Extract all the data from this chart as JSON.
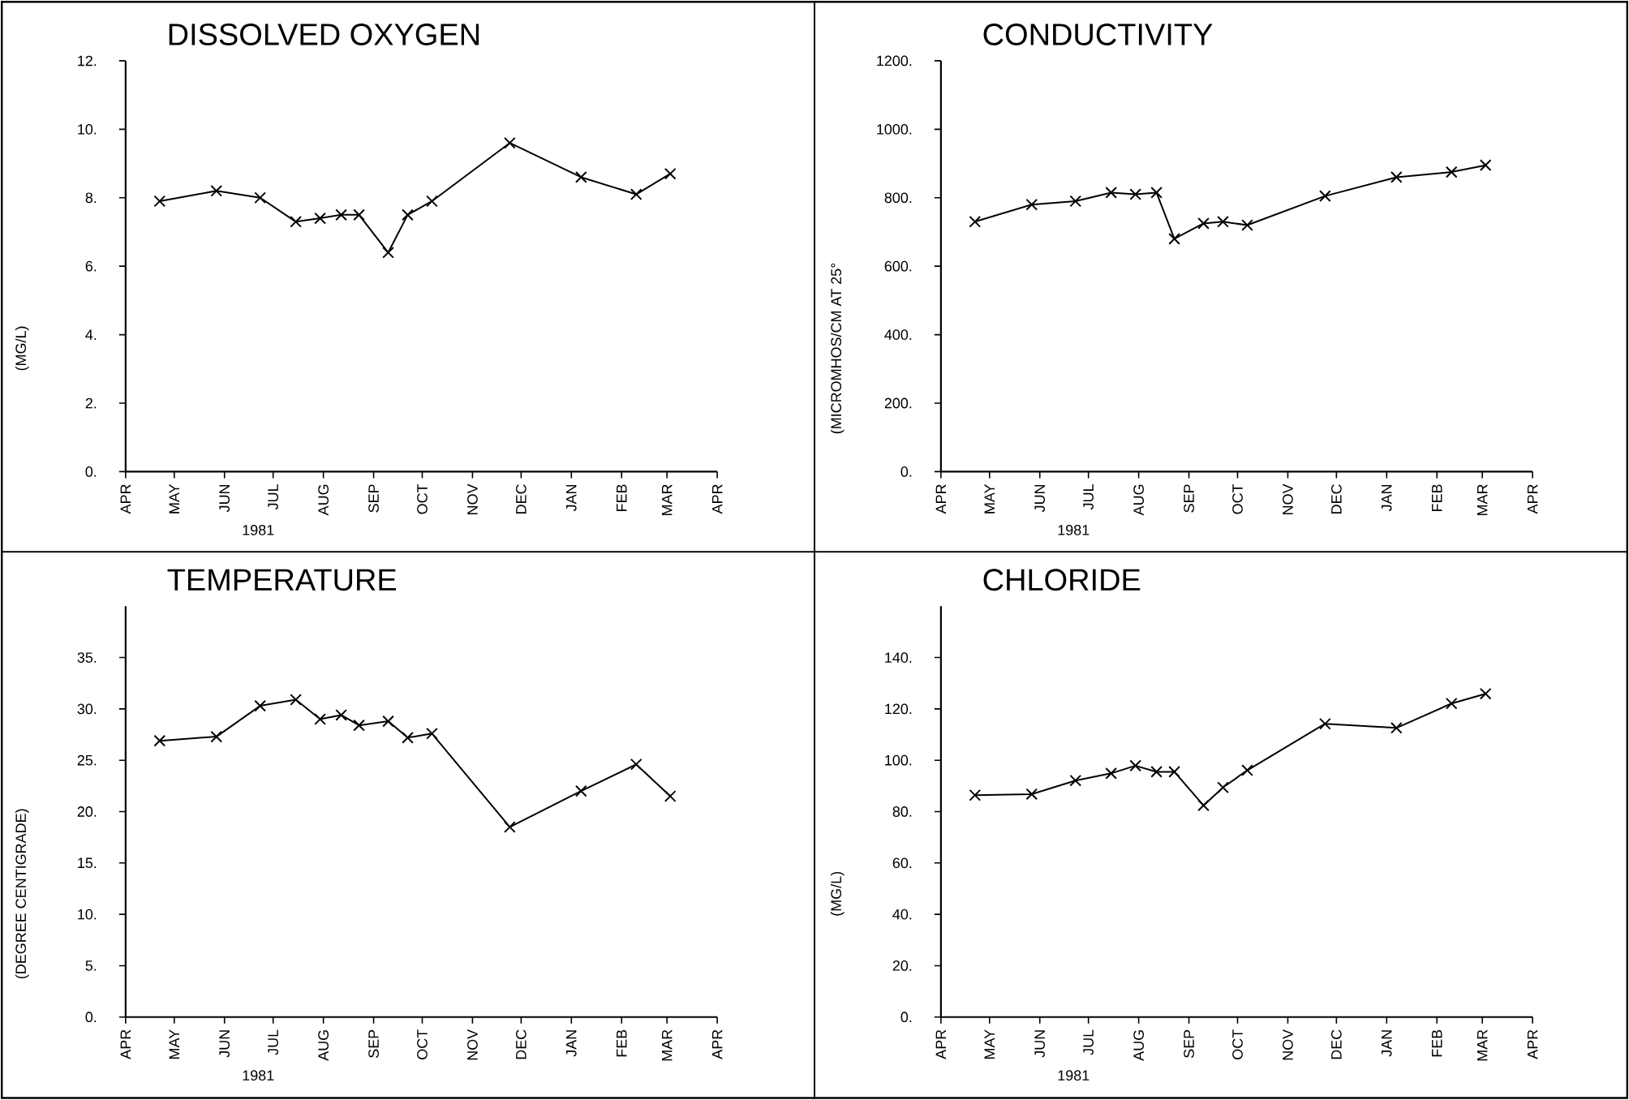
{
  "chart_data": [
    {
      "type": "line",
      "title": "DISSOLVED OXYGEN",
      "ylabel": "(MG/L)",
      "xlabel": "1981",
      "color": "#000000",
      "marker": "cross",
      "line_style": "solid",
      "grid": false,
      "x": [
        "1981-04-22",
        "1981-05-27",
        "1981-06-23",
        "1981-07-15",
        "1981-07-30",
        "1981-08-12",
        "1981-08-23",
        "1981-09-10",
        "1981-09-22",
        "1981-10-07",
        "1981-11-24",
        "1982-01-07",
        "1982-02-10",
        "1982-03-03"
      ],
      "values": [
        7.9,
        8.2,
        8.0,
        7.3,
        7.4,
        7.5,
        7.5,
        6.4,
        7.5,
        7.9,
        9.6,
        8.6,
        8.1,
        8.7
      ],
      "xlim": [
        "1981-04-01",
        "1982-04-01"
      ],
      "xticks": [
        {
          "value": "1981-04-01",
          "label": "APR"
        },
        {
          "value": "1981-05-01",
          "label": "MAY"
        },
        {
          "value": "1981-06-01",
          "label": "JUN"
        },
        {
          "value": "1981-07-01",
          "label": "JUL"
        },
        {
          "value": "1981-08-01",
          "label": "AUG"
        },
        {
          "value": "1981-09-01",
          "label": "SEP"
        },
        {
          "value": "1981-10-01",
          "label": "OCT"
        },
        {
          "value": "1981-11-01",
          "label": "NOV"
        },
        {
          "value": "1981-12-01",
          "label": "DEC"
        },
        {
          "value": "1982-01-01",
          "label": "JAN"
        },
        {
          "value": "1982-02-01",
          "label": "FEB"
        },
        {
          "value": "1982-03-01",
          "label": "MAR"
        },
        {
          "value": "1982-04-01",
          "label": "APR"
        }
      ],
      "ylim": [
        0,
        12
      ],
      "yticks": [
        {
          "value": 0,
          "label": "0."
        },
        {
          "value": 2,
          "label": "2."
        },
        {
          "value": 4,
          "label": "4."
        },
        {
          "value": 6,
          "label": "6."
        },
        {
          "value": 8,
          "label": "8."
        },
        {
          "value": 10,
          "label": "10."
        },
        {
          "value": 12,
          "label": "12."
        }
      ]
    },
    {
      "type": "line",
      "title": "CONDUCTIVITY",
      "ylabel": "(MICROMHOS/CM AT 25°",
      "xlabel": "1981",
      "color": "#000000",
      "marker": "cross",
      "line_style": "solid",
      "grid": false,
      "x": [
        "1981-04-22",
        "1981-05-27",
        "1981-06-23",
        "1981-07-15",
        "1981-07-30",
        "1981-08-12",
        "1981-08-23",
        "1981-09-10",
        "1981-09-22",
        "1981-10-07",
        "1981-11-24",
        "1982-01-07",
        "1982-02-10",
        "1982-03-03"
      ],
      "values": [
        730,
        780,
        790,
        815,
        810,
        815,
        680,
        725,
        730,
        720,
        805,
        860,
        875,
        895
      ],
      "xlim": [
        "1981-04-01",
        "1982-04-01"
      ],
      "xticks": [
        {
          "value": "1981-04-01",
          "label": "APR"
        },
        {
          "value": "1981-05-01",
          "label": "MAY"
        },
        {
          "value": "1981-06-01",
          "label": "JUN"
        },
        {
          "value": "1981-07-01",
          "label": "JUL"
        },
        {
          "value": "1981-08-01",
          "label": "AUG"
        },
        {
          "value": "1981-09-01",
          "label": "SEP"
        },
        {
          "value": "1981-10-01",
          "label": "OCT"
        },
        {
          "value": "1981-11-01",
          "label": "NOV"
        },
        {
          "value": "1981-12-01",
          "label": "DEC"
        },
        {
          "value": "1982-01-01",
          "label": "JAN"
        },
        {
          "value": "1982-02-01",
          "label": "FEB"
        },
        {
          "value": "1982-03-01",
          "label": "MAR"
        },
        {
          "value": "1982-04-01",
          "label": "APR"
        }
      ],
      "ylim": [
        0,
        1200
      ],
      "yticks": [
        {
          "value": 0,
          "label": "0."
        },
        {
          "value": 200,
          "label": "200."
        },
        {
          "value": 400,
          "label": "400."
        },
        {
          "value": 600,
          "label": "600."
        },
        {
          "value": 800,
          "label": "800."
        },
        {
          "value": 1000,
          "label": "1000."
        },
        {
          "value": 1200,
          "label": "1200."
        }
      ]
    },
    {
      "type": "line",
      "title": "TEMPERATURE",
      "ylabel": "(DEGREE CENTIGRADE)",
      "xlabel": "1981",
      "color": "#000000",
      "marker": "cross",
      "line_style": "solid",
      "grid": false,
      "x": [
        "1981-04-22",
        "1981-05-27",
        "1981-06-23",
        "1981-07-15",
        "1981-07-30",
        "1981-08-12",
        "1981-08-23",
        "1981-09-10",
        "1981-09-22",
        "1981-10-07",
        "1981-11-24",
        "1982-01-07",
        "1982-02-10",
        "1982-03-03"
      ],
      "values": [
        26.9,
        27.3,
        30.3,
        30.9,
        29.0,
        29.4,
        28.4,
        28.8,
        27.2,
        27.6,
        18.5,
        22.0,
        24.6,
        21.5
      ],
      "xlim": [
        "1981-04-01",
        "1982-04-01"
      ],
      "xticks": [
        {
          "value": "1981-04-01",
          "label": "APR"
        },
        {
          "value": "1981-05-01",
          "label": "MAY"
        },
        {
          "value": "1981-06-01",
          "label": "JUN"
        },
        {
          "value": "1981-07-01",
          "label": "JUL"
        },
        {
          "value": "1981-08-01",
          "label": "AUG"
        },
        {
          "value": "1981-09-01",
          "label": "SEP"
        },
        {
          "value": "1981-10-01",
          "label": "OCT"
        },
        {
          "value": "1981-11-01",
          "label": "NOV"
        },
        {
          "value": "1981-12-01",
          "label": "DEC"
        },
        {
          "value": "1982-01-01",
          "label": "JAN"
        },
        {
          "value": "1982-02-01",
          "label": "FEB"
        },
        {
          "value": "1982-03-01",
          "label": "MAR"
        },
        {
          "value": "1982-04-01",
          "label": "APR"
        }
      ],
      "ylim": [
        0,
        40
      ],
      "yticks": [
        {
          "value": 0,
          "label": "0."
        },
        {
          "value": 5,
          "label": "5."
        },
        {
          "value": 10,
          "label": "10."
        },
        {
          "value": 15,
          "label": "15."
        },
        {
          "value": 20,
          "label": "20."
        },
        {
          "value": 25,
          "label": "25."
        },
        {
          "value": 30,
          "label": "30."
        },
        {
          "value": 35,
          "label": "35."
        }
      ]
    },
    {
      "type": "line",
      "title": "CHLORIDE",
      "ylabel": "(MG/L)",
      "xlabel": "1981",
      "color": "#000000",
      "marker": "cross",
      "line_style": "solid",
      "grid": false,
      "x": [
        "1981-04-22",
        "1981-05-27",
        "1981-06-23",
        "1981-07-15",
        "1981-07-30",
        "1981-08-12",
        "1981-08-23",
        "1981-09-10",
        "1981-09-22",
        "1981-10-07",
        "1981-11-24",
        "1982-01-07",
        "1982-02-10",
        "1982-03-03"
      ],
      "values": [
        86.4,
        86.8,
        92.1,
        94.9,
        97.9,
        95.5,
        95.5,
        82.4,
        89.4,
        96.1,
        114.2,
        112.6,
        122.1,
        125.9
      ],
      "xlim": [
        "1981-04-01",
        "1982-04-01"
      ],
      "xticks": [
        {
          "value": "1981-04-01",
          "label": "APR"
        },
        {
          "value": "1981-05-01",
          "label": "MAY"
        },
        {
          "value": "1981-06-01",
          "label": "JUN"
        },
        {
          "value": "1981-07-01",
          "label": "JUL"
        },
        {
          "value": "1981-08-01",
          "label": "AUG"
        },
        {
          "value": "1981-09-01",
          "label": "SEP"
        },
        {
          "value": "1981-10-01",
          "label": "OCT"
        },
        {
          "value": "1981-11-01",
          "label": "NOV"
        },
        {
          "value": "1981-12-01",
          "label": "DEC"
        },
        {
          "value": "1982-01-01",
          "label": "JAN"
        },
        {
          "value": "1982-02-01",
          "label": "FEB"
        },
        {
          "value": "1982-03-01",
          "label": "MAR"
        },
        {
          "value": "1982-04-01",
          "label": "APR"
        }
      ],
      "ylim": [
        0,
        160
      ],
      "yticks": [
        {
          "value": 0,
          "label": "0."
        },
        {
          "value": 20,
          "label": "20."
        },
        {
          "value": 40,
          "label": "40."
        },
        {
          "value": 60,
          "label": "60."
        },
        {
          "value": 80,
          "label": "80."
        },
        {
          "value": 100,
          "label": "100."
        },
        {
          "value": 120,
          "label": "120."
        },
        {
          "value": 140,
          "label": "140."
        }
      ]
    }
  ]
}
